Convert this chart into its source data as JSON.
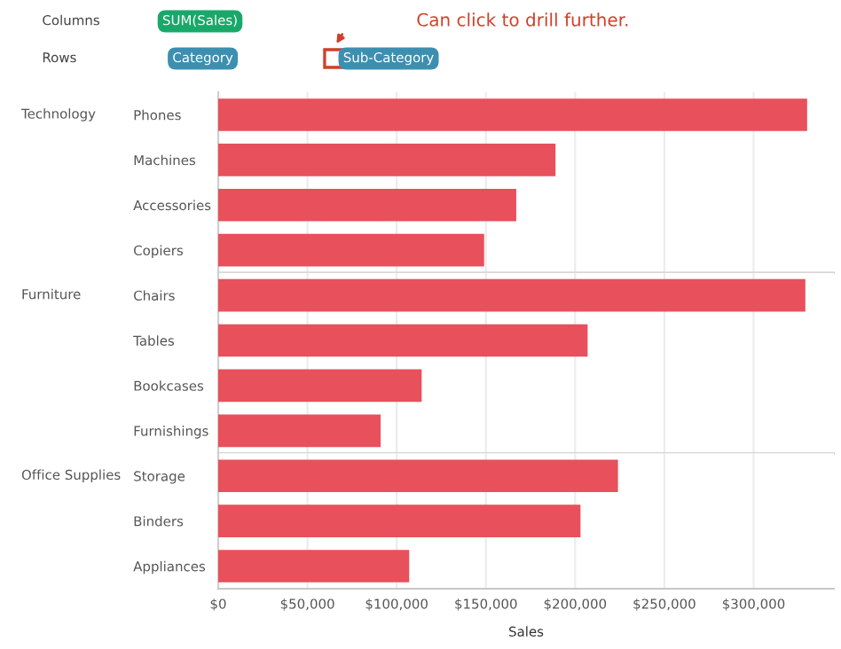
{
  "chart_data": [
    {
      "type": "bar",
      "orientation": "horizontal",
      "title": "Technology",
      "categories": [
        "Phones",
        "Machines",
        "Accessories",
        "Copiers"
      ],
      "values": [
        330000,
        189000,
        167000,
        149000
      ],
      "color": "#e8505b",
      "xlim": [
        0,
        345000
      ],
      "xticks": [
        0,
        50000,
        100000,
        150000,
        200000,
        250000,
        300000
      ],
      "grid": "x",
      "tick_labels": "y",
      "annotations": [
        "Columns",
        "SUM(Sales)",
        "Rows",
        "Category",
        "Sub-Category",
        "Can click to drill further."
      ]
    },
    {
      "type": "bar",
      "orientation": "horizontal",
      "title": "Furniture",
      "categories": [
        "Chairs",
        "Tables",
        "Bookcases",
        "Furnishings"
      ],
      "values": [
        329000,
        207000,
        114000,
        91000
      ],
      "color": "#e8505b",
      "xlim": [
        0,
        345000
      ],
      "xticks": [
        0,
        50000,
        100000,
        150000,
        200000,
        250000,
        300000
      ],
      "grid": "x",
      "tick_labels": "y"
    },
    {
      "type": "bar",
      "orientation": "horizontal",
      "title": "Office Supplies",
      "categories": [
        "Storage",
        "Binders",
        "Appliances"
      ],
      "values": [
        224000,
        203000,
        107000
      ],
      "color": "#e8505b",
      "xlim": [
        0,
        345000
      ],
      "xticks": [
        {
          "value": 0,
          "label": "$0"
        },
        {
          "value": 50000,
          "label": "$50,000"
        },
        {
          "value": 100000,
          "label": "$100,000"
        },
        {
          "value": 150000,
          "label": "$150,000"
        },
        {
          "value": 200000,
          "label": "$200,000"
        },
        {
          "value": 250000,
          "label": "$250,000"
        },
        {
          "value": 300000,
          "label": "$300,000"
        }
      ],
      "grid": "x",
      "xlabel": "Sales"
    }
  ]
}
